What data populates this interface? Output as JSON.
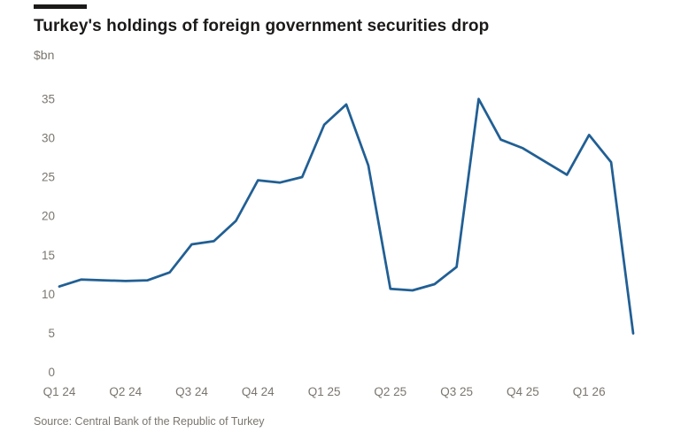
{
  "header": {
    "title": "Turkey's holdings of foreign government securities drop",
    "subtitle_unit": "$bn"
  },
  "source_note": "Source: Central Bank of the Republic of Turkey",
  "colors": {
    "background": "#ffffff",
    "accent_bar": "#1c1a19",
    "title_text": "#1c1a19",
    "muted_text": "#7b756f",
    "line": "#215f94"
  },
  "chart_data": {
    "type": "line",
    "title": "Turkey's holdings of foreign government securities drop",
    "ylabel": "$bn",
    "xlabel": "",
    "grid": false,
    "legend": false,
    "ylim": [
      0,
      35
    ],
    "y_ticks": [
      0,
      5,
      10,
      15,
      20,
      25,
      30,
      35
    ],
    "x": [
      "Jan 24",
      "Feb 24",
      "Mar 24",
      "Apr 24",
      "May 24",
      "Jun 24",
      "Jul 24",
      "Aug 24",
      "Sep 24",
      "Oct 24",
      "Nov 24",
      "Dec 24",
      "Jan 25",
      "Feb 25",
      "Mar 25",
      "Apr 25",
      "May 25",
      "Jun 25",
      "Jul 25",
      "Aug 25",
      "Sep 25",
      "Oct 25",
      "Nov 25",
      "Dec 25",
      "Jan 26",
      "Feb 26",
      "Mar 26"
    ],
    "values": [
      11.0,
      11.9,
      11.8,
      11.7,
      11.8,
      12.8,
      16.4,
      16.8,
      19.4,
      24.6,
      24.3,
      25.0,
      31.7,
      34.3,
      26.5,
      10.7,
      10.5,
      11.3,
      13.5,
      35.0,
      29.8,
      28.7,
      27.0,
      25.3,
      30.4,
      26.9,
      5.0
    ],
    "x_tick_labels": [
      {
        "label": "Q1 24",
        "index": 0
      },
      {
        "label": "Q2 24",
        "index": 3
      },
      {
        "label": "Q3 24",
        "index": 6
      },
      {
        "label": "Q4 24",
        "index": 9
      },
      {
        "label": "Q1 25",
        "index": 12
      },
      {
        "label": "Q2 25",
        "index": 15
      },
      {
        "label": "Q3 25",
        "index": 18
      },
      {
        "label": "Q4 25",
        "index": 21
      },
      {
        "label": "Q1 26",
        "index": 24
      }
    ]
  }
}
